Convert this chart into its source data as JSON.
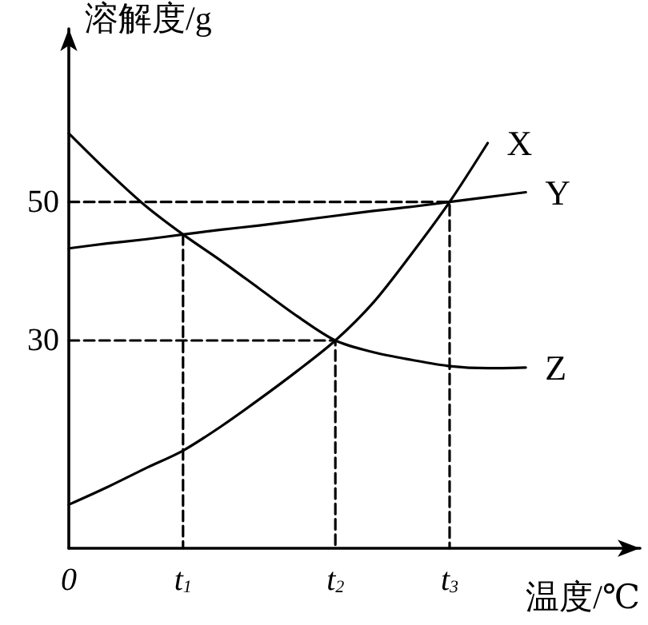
{
  "chart_data": {
    "type": "line",
    "xlabel": "温度/℃",
    "ylabel": "溶解度/g",
    "categories": [
      "0",
      null,
      null,
      "t$_{1}$",
      null,
      null,
      null,
      "t$_{2}$",
      null,
      null,
      "t$_{3}$",
      null,
      null,
      null,
      null,
      null
    ],
    "ylim": [
      0,
      75
    ],
    "yticks": [
      30,
      50
    ],
    "grid": false,
    "legend": false,
    "marker": "none",
    "line_style": "solid",
    "series": [
      {
        "name": "X",
        "color": "#000000",
        "values": [
          6.3,
          8.8,
          11.5,
          14.1,
          17.6,
          21.5,
          25.6,
          30,
          35.5,
          42.5,
          50,
          58.5,
          null,
          null,
          null,
          null
        ]
      },
      {
        "name": "Y",
        "color": "#000000",
        "values": [
          43.3,
          44,
          44.6,
          45.3,
          46,
          46.6,
          47.3,
          48,
          48.7,
          49.3,
          50,
          50.7,
          51.4,
          null,
          null,
          null
        ]
      },
      {
        "name": "Z",
        "color": "#000000",
        "values": [
          59.9,
          54.5,
          49.5,
          45.3,
          41.5,
          37.5,
          33.5,
          30,
          28.3,
          27.2,
          26.3,
          26.0,
          26.1,
          null,
          null,
          null
        ]
      },
      {
        "color": "#000000",
        "line_style": "dashed",
        "x": [
          "0",
          "t$_{3}$",
          "t$_{3}$"
        ],
        "values": [
          50,
          50,
          0
        ]
      },
      {
        "color": "#000000",
        "line_style": "dashed",
        "x": [
          "0",
          "t$_{2}$",
          "t$_{2}$"
        ],
        "values": [
          30,
          30,
          0
        ]
      },
      {
        "color": "#000000",
        "line_style": "dashed",
        "x": [
          "t$_{1}$",
          "t$_{1}$"
        ],
        "values": [
          45.3,
          0
        ]
      }
    ]
  }
}
